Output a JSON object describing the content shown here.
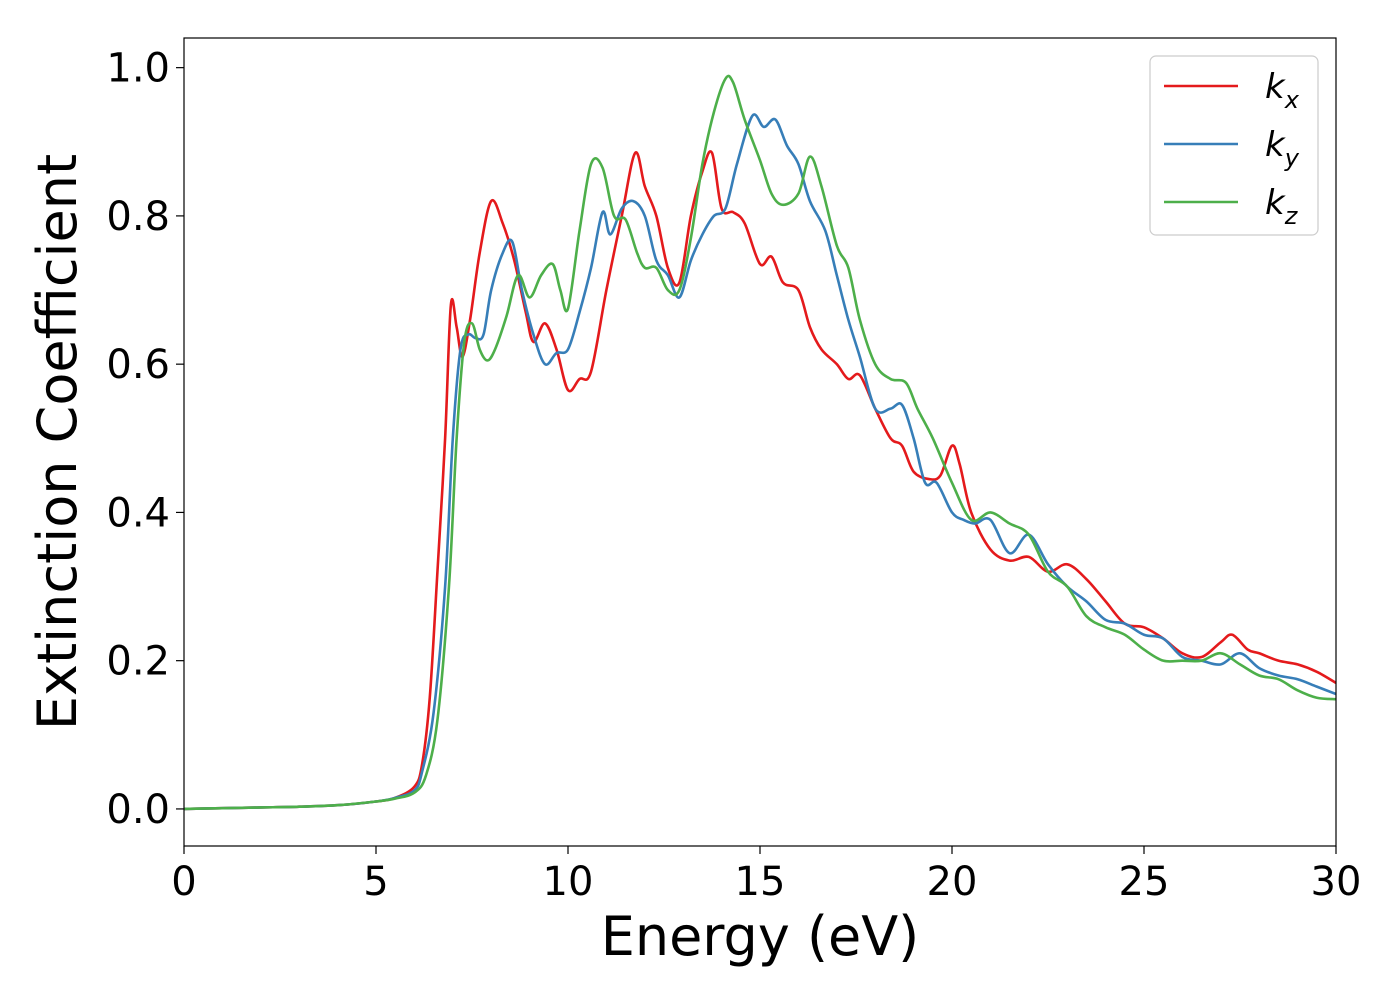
{
  "chart_data": {
    "type": "line",
    "xlabel": "Energy (eV)",
    "ylabel": "Extinction Coefficient",
    "xlim": [
      0,
      30
    ],
    "ylim": [
      -0.05,
      1.04
    ],
    "xticks": [
      0,
      5,
      10,
      15,
      20,
      25,
      30
    ],
    "yticks": [
      0.0,
      0.2,
      0.4,
      0.6,
      0.8,
      1.0
    ],
    "xtick_labels": [
      "0",
      "5",
      "10",
      "15",
      "20",
      "25",
      "30"
    ],
    "ytick_labels": [
      "0.0",
      "0.2",
      "0.4",
      "0.6",
      "0.8",
      "1.0"
    ],
    "grid": false,
    "legend_position": "top-right",
    "series": [
      {
        "name": "kx",
        "label_base": "k",
        "label_sub": "x",
        "color": "#e41a1c",
        "x": [
          0,
          1,
          2,
          3,
          4,
          5,
          5.5,
          6,
          6.2,
          6.4,
          6.6,
          6.8,
          6.95,
          7.1,
          7.25,
          7.45,
          7.7,
          8.0,
          8.3,
          8.6,
          8.9,
          9.1,
          9.4,
          9.7,
          10.0,
          10.3,
          10.6,
          11.0,
          11.4,
          11.75,
          12.0,
          12.3,
          12.6,
          12.9,
          13.2,
          13.5,
          13.75,
          14.0,
          14.3,
          14.6,
          15.0,
          15.3,
          15.6,
          16.0,
          16.3,
          16.6,
          17.0,
          17.3,
          17.6,
          18.0,
          18.4,
          18.7,
          19.0,
          19.4,
          19.7,
          20.0,
          20.2,
          20.5,
          21.0,
          21.5,
          22.0,
          22.5,
          23.0,
          23.5,
          24.0,
          24.5,
          25.0,
          25.5,
          26.0,
          26.5,
          27.0,
          27.3,
          27.7,
          28.0,
          28.5,
          29.0,
          29.5,
          30.0
        ],
        "y": [
          0,
          0.001,
          0.002,
          0.003,
          0.005,
          0.01,
          0.015,
          0.03,
          0.06,
          0.15,
          0.32,
          0.5,
          0.68,
          0.65,
          0.61,
          0.66,
          0.75,
          0.82,
          0.79,
          0.74,
          0.67,
          0.63,
          0.655,
          0.62,
          0.565,
          0.58,
          0.59,
          0.7,
          0.8,
          0.885,
          0.84,
          0.8,
          0.73,
          0.71,
          0.8,
          0.86,
          0.885,
          0.81,
          0.805,
          0.79,
          0.735,
          0.745,
          0.71,
          0.7,
          0.65,
          0.62,
          0.6,
          0.58,
          0.585,
          0.54,
          0.5,
          0.49,
          0.455,
          0.445,
          0.45,
          0.49,
          0.465,
          0.4,
          0.35,
          0.335,
          0.34,
          0.32,
          0.33,
          0.31,
          0.28,
          0.25,
          0.245,
          0.23,
          0.21,
          0.205,
          0.225,
          0.235,
          0.215,
          0.21,
          0.2,
          0.195,
          0.185,
          0.17
        ]
      },
      {
        "name": "ky",
        "label_base": "k",
        "label_sub": "y",
        "color": "#377eb8",
        "x": [
          0,
          1,
          2,
          3,
          4,
          5,
          5.5,
          6,
          6.2,
          6.5,
          6.8,
          7.0,
          7.2,
          7.4,
          7.6,
          7.8,
          8.0,
          8.3,
          8.55,
          8.8,
          9.1,
          9.4,
          9.7,
          10.0,
          10.3,
          10.6,
          10.9,
          11.1,
          11.4,
          11.7,
          12.0,
          12.3,
          12.6,
          12.9,
          13.2,
          13.5,
          13.8,
          14.1,
          14.4,
          14.8,
          15.1,
          15.4,
          15.7,
          16.0,
          16.3,
          16.7,
          17.0,
          17.3,
          17.6,
          18.0,
          18.4,
          18.7,
          19.0,
          19.3,
          19.6,
          20.0,
          20.3,
          20.6,
          21.0,
          21.5,
          22.0,
          22.5,
          23.0,
          23.5,
          24.0,
          24.5,
          25.0,
          25.5,
          26.0,
          26.5,
          27.0,
          27.5,
          28.0,
          28.5,
          29.0,
          29.5,
          30.0
        ],
        "y": [
          0,
          0.001,
          0.002,
          0.003,
          0.005,
          0.01,
          0.015,
          0.025,
          0.05,
          0.13,
          0.3,
          0.5,
          0.62,
          0.64,
          0.635,
          0.64,
          0.7,
          0.75,
          0.765,
          0.7,
          0.64,
          0.6,
          0.615,
          0.62,
          0.67,
          0.73,
          0.805,
          0.775,
          0.81,
          0.82,
          0.8,
          0.74,
          0.72,
          0.69,
          0.74,
          0.775,
          0.8,
          0.81,
          0.87,
          0.935,
          0.92,
          0.93,
          0.895,
          0.87,
          0.82,
          0.78,
          0.72,
          0.66,
          0.61,
          0.54,
          0.54,
          0.545,
          0.5,
          0.44,
          0.44,
          0.4,
          0.39,
          0.385,
          0.39,
          0.345,
          0.37,
          0.33,
          0.3,
          0.28,
          0.255,
          0.25,
          0.235,
          0.23,
          0.205,
          0.2,
          0.195,
          0.21,
          0.19,
          0.18,
          0.175,
          0.165,
          0.155
        ]
      },
      {
        "name": "kz",
        "label_base": "k",
        "label_sub": "z",
        "color": "#4daf4a",
        "x": [
          0,
          1,
          2,
          3,
          4,
          5,
          5.5,
          6,
          6.3,
          6.6,
          6.9,
          7.1,
          7.3,
          7.5,
          7.7,
          7.9,
          8.1,
          8.4,
          8.7,
          9.0,
          9.3,
          9.6,
          9.8,
          10.0,
          10.3,
          10.6,
          10.9,
          11.2,
          11.5,
          11.8,
          12.0,
          12.3,
          12.6,
          12.9,
          13.2,
          13.5,
          13.8,
          14.1,
          14.3,
          14.6,
          15.0,
          15.3,
          15.6,
          16.0,
          16.3,
          16.6,
          17.0,
          17.3,
          17.6,
          18.0,
          18.4,
          18.8,
          19.1,
          19.5,
          20.0,
          20.5,
          21.0,
          21.5,
          22.0,
          22.5,
          23.0,
          23.5,
          24.0,
          24.5,
          25.0,
          25.5,
          26.0,
          26.5,
          27.0,
          27.5,
          28.0,
          28.5,
          29.0,
          29.5,
          30.0
        ],
        "y": [
          0,
          0.001,
          0.002,
          0.003,
          0.005,
          0.01,
          0.014,
          0.022,
          0.045,
          0.12,
          0.3,
          0.5,
          0.63,
          0.655,
          0.62,
          0.605,
          0.62,
          0.665,
          0.72,
          0.69,
          0.72,
          0.735,
          0.7,
          0.675,
          0.78,
          0.87,
          0.865,
          0.8,
          0.795,
          0.75,
          0.73,
          0.73,
          0.7,
          0.7,
          0.77,
          0.87,
          0.94,
          0.985,
          0.98,
          0.93,
          0.875,
          0.83,
          0.815,
          0.83,
          0.88,
          0.84,
          0.76,
          0.73,
          0.66,
          0.6,
          0.58,
          0.575,
          0.54,
          0.5,
          0.44,
          0.39,
          0.4,
          0.385,
          0.37,
          0.32,
          0.3,
          0.26,
          0.245,
          0.235,
          0.215,
          0.2,
          0.2,
          0.2,
          0.21,
          0.195,
          0.18,
          0.175,
          0.16,
          0.15,
          0.148
        ]
      }
    ]
  }
}
